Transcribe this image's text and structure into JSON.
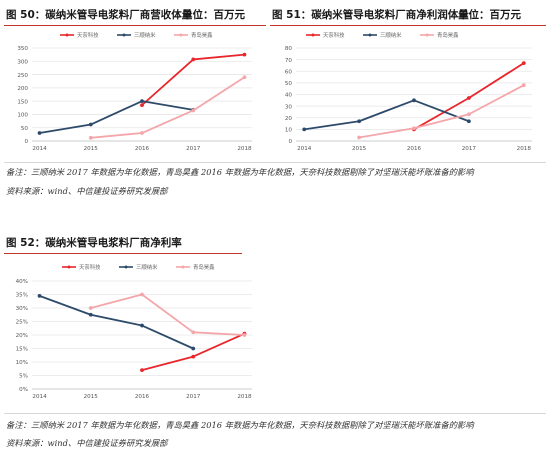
{
  "fig50": {
    "title": "图 50：碳纳米管导电浆料厂商营收体量",
    "unit": "单位：百万元"
  },
  "fig51": {
    "title": "图 51：碳纳米管导电浆料厂商净利润体量",
    "unit": "单位：百万元"
  },
  "fig52": {
    "title": "图 52：碳纳米管导电浆料厂商净利率"
  },
  "notes_top": {
    "line1": "备注：三顺纳米 2017 年数据为年化数据，青岛昊鑫 2016 年数据为年化数据，天奈科技数据剔除了对坚瑞沃能坏账准备的影响",
    "line2": "资料来源：wind、中信建投证券研究发展部"
  },
  "notes_bottom": {
    "line1": "备注：三顺纳米 2017 年数据为年化数据，青岛昊鑫 2016 年数据为年化数据，天奈科技数据剔除了对坚瑞沃能坏账准备的影响",
    "line2": "资料来源：wind、中信建投证券研究发展部"
  },
  "colors": {
    "tiannai": "#e8262c",
    "sanshun": "#2e4a6b",
    "qingdao": "#f4a6aa"
  },
  "chart_data": [
    {
      "id": "fig50",
      "type": "line",
      "x": [
        "2014",
        "2015",
        "2016",
        "2017",
        "2018"
      ],
      "ylim": [
        0,
        350
      ],
      "yticks": [
        0,
        50,
        100,
        150,
        200,
        250,
        300,
        350
      ],
      "ytick_labels": [
        "0",
        "50",
        "100",
        "150",
        "200",
        "250",
        "300",
        "350"
      ],
      "legend_position": "top-center",
      "series": [
        {
          "name": "天奈科技",
          "color_key": "tiannai",
          "values": [
            null,
            null,
            135,
            307,
            325
          ]
        },
        {
          "name": "三顺纳米",
          "color_key": "sanshun",
          "values": [
            30,
            62,
            150,
            117,
            null
          ]
        },
        {
          "name": "青岛昊鑫",
          "color_key": "qingdao",
          "values": [
            null,
            12,
            30,
            115,
            240
          ]
        }
      ]
    },
    {
      "id": "fig51",
      "type": "line",
      "x": [
        "2014",
        "2015",
        "2016",
        "2017",
        "2018"
      ],
      "ylim": [
        0,
        80
      ],
      "yticks": [
        0,
        10,
        20,
        30,
        40,
        50,
        60,
        70,
        80
      ],
      "ytick_labels": [
        "0",
        "10",
        "20",
        "30",
        "40",
        "50",
        "60",
        "70",
        "80"
      ],
      "legend_position": "top-center",
      "series": [
        {
          "name": "天奈科技",
          "color_key": "tiannai",
          "values": [
            null,
            null,
            10,
            37,
            67
          ]
        },
        {
          "name": "三顺纳米",
          "color_key": "sanshun",
          "values": [
            10,
            17,
            35,
            17,
            null
          ]
        },
        {
          "name": "青岛昊鑫",
          "color_key": "qingdao",
          "values": [
            null,
            3,
            11,
            23,
            48
          ]
        }
      ]
    },
    {
      "id": "fig52",
      "type": "line",
      "x": [
        "2014",
        "2015",
        "2016",
        "2017",
        "2018"
      ],
      "ylim": [
        0,
        40
      ],
      "yticks": [
        0,
        5,
        10,
        15,
        20,
        25,
        30,
        35,
        40
      ],
      "ytick_labels": [
        "0%",
        "5%",
        "10%",
        "15%",
        "20%",
        "25%",
        "30%",
        "35%",
        "40%"
      ],
      "legend_position": "top-center",
      "series": [
        {
          "name": "天奈科技",
          "color_key": "tiannai",
          "values": [
            null,
            null,
            7,
            12,
            20.5
          ]
        },
        {
          "name": "三顺纳米",
          "color_key": "sanshun",
          "values": [
            34.5,
            27.5,
            23.5,
            15,
            null
          ]
        },
        {
          "name": "青岛昊鑫",
          "color_key": "qingdao",
          "values": [
            null,
            30,
            35,
            21,
            20
          ]
        }
      ]
    }
  ]
}
